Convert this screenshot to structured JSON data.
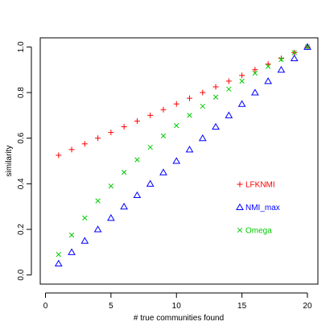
{
  "chart_data": {
    "type": "scatter",
    "title": "",
    "xlabel": "# true communities found",
    "ylabel": "similarity",
    "xlim": [
      -0.4,
      20.8
    ],
    "ylim": [
      -0.04,
      1.04
    ],
    "xticks": [
      0,
      5,
      10,
      15,
      20
    ],
    "yticks": [
      0.0,
      0.2,
      0.4,
      0.6,
      0.8,
      1.0
    ],
    "xtick_labels": [
      "0",
      "5",
      "10",
      "15",
      "20"
    ],
    "ytick_labels": [
      "0.0",
      "0.2",
      "0.4",
      "0.6",
      "0.8",
      "1.0"
    ],
    "grid": false,
    "legend_position": "center-right",
    "series": [
      {
        "name": "LFKNMI",
        "marker": "plus",
        "color": "#ff0000",
        "x": [
          1,
          2,
          3,
          4,
          5,
          6,
          7,
          8,
          9,
          10,
          11,
          12,
          13,
          14,
          15,
          16,
          17,
          18,
          19,
          20
        ],
        "y": [
          0.525,
          0.55,
          0.575,
          0.6,
          0.625,
          0.65,
          0.675,
          0.7,
          0.725,
          0.75,
          0.775,
          0.8,
          0.825,
          0.85,
          0.875,
          0.9,
          0.925,
          0.95,
          0.975,
          1.0
        ]
      },
      {
        "name": "NMI_max",
        "marker": "triangle",
        "color": "#0000ff",
        "x": [
          1,
          2,
          3,
          4,
          5,
          6,
          7,
          8,
          9,
          10,
          11,
          12,
          13,
          14,
          15,
          16,
          17,
          18,
          19,
          20
        ],
        "y": [
          0.05,
          0.1,
          0.15,
          0.2,
          0.25,
          0.3,
          0.35,
          0.4,
          0.45,
          0.5,
          0.55,
          0.6,
          0.65,
          0.7,
          0.75,
          0.8,
          0.85,
          0.9,
          0.95,
          1.0
        ]
      },
      {
        "name": "Omega",
        "marker": "cross",
        "color": "#00cc00",
        "x": [
          1,
          2,
          3,
          4,
          5,
          6,
          7,
          8,
          9,
          10,
          11,
          12,
          13,
          14,
          15,
          16,
          17,
          18,
          19,
          20
        ],
        "y": [
          0.09,
          0.175,
          0.25,
          0.325,
          0.39,
          0.45,
          0.505,
          0.56,
          0.61,
          0.655,
          0.7,
          0.74,
          0.78,
          0.815,
          0.85,
          0.885,
          0.915,
          0.945,
          0.975,
          1.0
        ]
      }
    ]
  }
}
